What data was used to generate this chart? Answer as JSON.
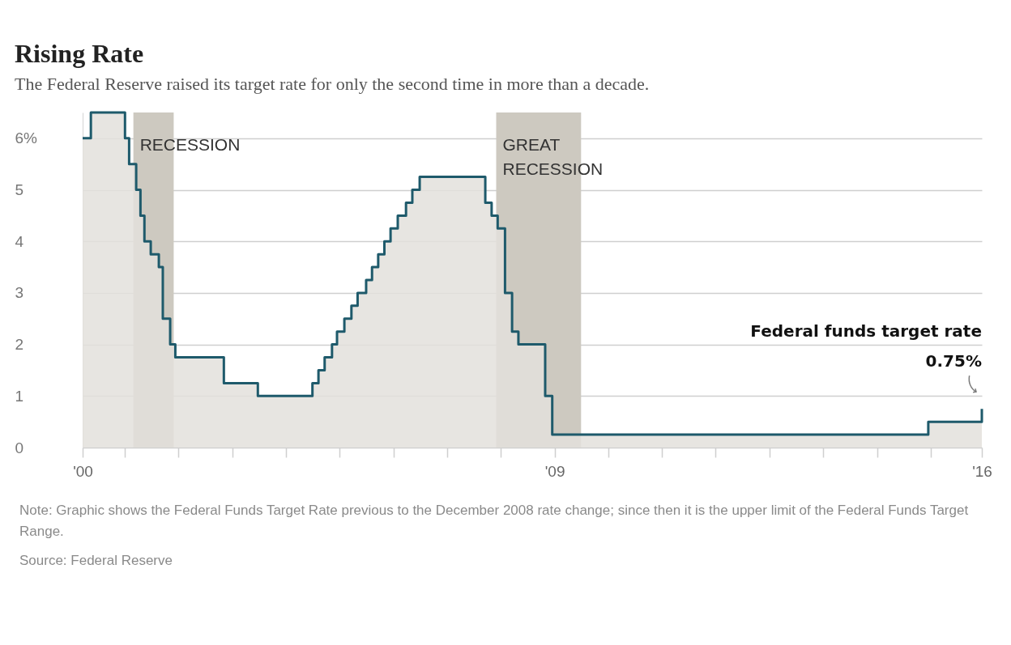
{
  "chart_data": {
    "type": "step",
    "title": "Rising Rate",
    "subtitle": "The Federal Reserve raised its target rate for only the second time in more than a decade.",
    "series": [
      {
        "type": "area",
        "color": "#e3e1dc",
        "x": [
          "2000-03-21",
          "2000-05-16",
          "2001-01-03",
          "2001-01-31",
          "2001-03-20",
          "2001-04-18",
          "2001-05-15",
          "2001-06-27",
          "2001-08-21",
          "2001-09-17",
          "2001-10-02",
          "2001-11-06",
          "2001-12-11",
          "2002-11-06",
          "2003-06-25",
          "2004-06-30",
          "2004-08-10",
          "2004-09-21",
          "2004-11-10",
          "2004-12-14",
          "2005-02-02",
          "2005-03-22",
          "2005-05-03",
          "2005-06-30",
          "2005-08-09",
          "2005-09-20",
          "2005-11-01",
          "2005-12-13",
          "2006-01-31",
          "2006-03-28",
          "2006-05-10",
          "2006-06-29",
          "2007-09-18",
          "2007-10-31",
          "2007-12-11",
          "2008-01-30",
          "2008-03-18",
          "2008-04-30",
          "2008-10-29",
          "2008-12-16",
          "2015-12-16",
          "2016-12-14"
        ],
        "values": [
          6,
          6.5,
          6,
          5.5,
          5,
          4.5,
          4,
          3.75,
          3.5,
          2.5,
          2.5,
          2,
          1.75,
          1.25,
          1,
          1.25,
          1.5,
          1.75,
          2,
          2.25,
          2.5,
          2.75,
          3,
          3.25,
          3.5,
          3.75,
          4,
          4.25,
          4.5,
          4.75,
          5,
          5.25,
          4.75,
          4.5,
          4.25,
          3,
          2.25,
          2,
          1,
          0.25,
          0.5,
          0.75
        ]
      },
      {
        "color": "#1e5a6b",
        "x": [
          "2000-03-21",
          "2000-05-16",
          "2001-01-03",
          "2001-01-31",
          "2001-03-20",
          "2001-04-18",
          "2001-05-15",
          "2001-06-27",
          "2001-08-21",
          "2001-09-17",
          "2001-10-02",
          "2001-11-06",
          "2001-12-11",
          "2002-11-06",
          "2003-06-25",
          "2004-06-30",
          "2004-08-10",
          "2004-09-21",
          "2004-11-10",
          "2004-12-14",
          "2005-02-02",
          "2005-03-22",
          "2005-05-03",
          "2005-06-30",
          "2005-08-09",
          "2005-09-20",
          "2005-11-01",
          "2005-12-13",
          "2006-01-31",
          "2006-03-28",
          "2006-05-10",
          "2006-06-29",
          "2007-09-18",
          "2007-10-31",
          "2007-12-11",
          "2008-01-30",
          "2008-03-18",
          "2008-04-30",
          "2008-10-29",
          "2008-12-16",
          "2015-12-16",
          "2016-12-14"
        ],
        "values": [
          6,
          6.5,
          6,
          5.5,
          5,
          4.5,
          4,
          3.75,
          3.5,
          2.5,
          2.5,
          2,
          1.75,
          1.25,
          1,
          1.25,
          1.5,
          1.75,
          2,
          2.25,
          2.5,
          2.75,
          3,
          3.25,
          3.5,
          3.75,
          4,
          4.25,
          4.5,
          4.75,
          5,
          5.25,
          4.75,
          4.5,
          4.25,
          3,
          2.25,
          2,
          1,
          0.25,
          0.5,
          0.75
        ]
      }
    ],
    "xlim": [
      "2000-03-21",
      "2016-12-14"
    ],
    "xticks": [
      {
        "value": "2000-03-21",
        "label": "'00"
      },
      {
        "value": "2001-01-01",
        "label": null
      },
      {
        "value": "2002-01-01",
        "label": null
      },
      {
        "value": "2003-01-01",
        "label": null
      },
      {
        "value": "2004-01-01",
        "label": null
      },
      {
        "value": "2005-01-01",
        "label": null
      },
      {
        "value": "2006-01-01",
        "label": null
      },
      {
        "value": "2007-01-01",
        "label": null
      },
      {
        "value": "2008-01-01",
        "label": null
      },
      {
        "value": "2009-01-01",
        "label": "'09"
      },
      {
        "value": "2010-01-01",
        "label": null
      },
      {
        "value": "2011-01-01",
        "label": null
      },
      {
        "value": "2012-01-01",
        "label": null
      },
      {
        "value": "2013-01-01",
        "label": null
      },
      {
        "value": "2014-01-01",
        "label": null
      },
      {
        "value": "2015-01-01",
        "label": null
      },
      {
        "value": "2016-01-01",
        "label": null
      },
      {
        "value": "2016-12-14",
        "label": "'16"
      }
    ],
    "ylim": [
      0,
      6.5
    ],
    "yticks": [
      0,
      1,
      2,
      3,
      4,
      5,
      {
        "value": 6,
        "label": "6%"
      }
    ],
    "grid": "y",
    "bands": [
      {
        "axis": "x",
        "from": "2001-03-01",
        "to": "2001-11-30",
        "label": "RECESSION",
        "color": "#cdc9c0"
      },
      {
        "axis": "x",
        "from": "2007-12-01",
        "to": "2009-06-30",
        "label": "GREAT\nRECESSION",
        "color": "#cdc9c0"
      }
    ],
    "annotations": [
      "Federal funds target rate",
      {
        "text": "0.75%",
        "x": "2016-12-14",
        "y": 0.75
      },
      "Note: Graphic shows the Federal Funds Target Rate previous to the December 2008 rate change; since then it is the upper limit of the Federal Funds Target Range.",
      "Source: Federal Reserve"
    ]
  }
}
